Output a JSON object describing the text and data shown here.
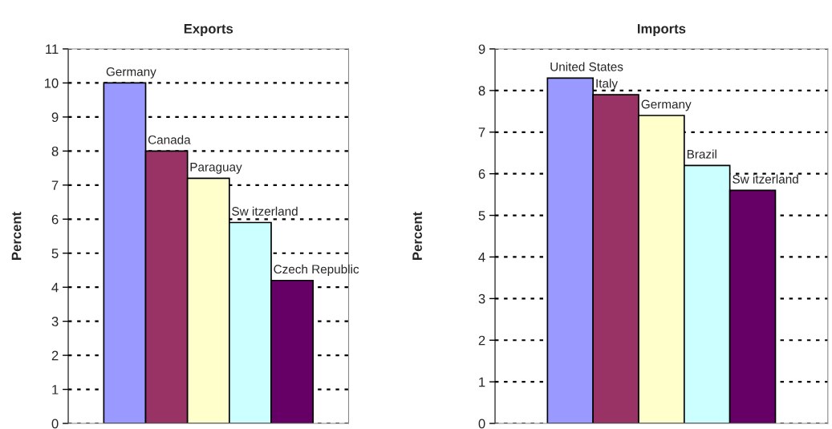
{
  "chart_data": [
    {
      "type": "bar",
      "title": "Exports",
      "ylabel": "Percent",
      "categories": [
        null
      ],
      "series": [
        {
          "name": "Germany",
          "color": "#9999ff",
          "values": [
            10.0
          ]
        },
        {
          "name": "Canada",
          "color": "#993366",
          "values": [
            8.0
          ]
        },
        {
          "name": "Paraguay",
          "color": "#ffffcc",
          "values": [
            7.2
          ]
        },
        {
          "name": "Sw itzerland",
          "color": "#ccffff",
          "values": [
            5.9
          ]
        },
        {
          "name": "Czech Republic",
          "color": "#660066",
          "values": [
            4.2
          ]
        }
      ],
      "ylim": [
        0,
        11
      ],
      "yticks": [
        0,
        1,
        2,
        3,
        4,
        5,
        6,
        7,
        8,
        9,
        10,
        11
      ],
      "grid": "y",
      "tick_labels": "y",
      "line_style": "dotted"
    },
    {
      "type": "bar",
      "title": "Imports",
      "ylabel": "Percent",
      "categories": [
        null
      ],
      "series": [
        {
          "name": "United States",
          "color": "#9999ff",
          "values": [
            8.3
          ]
        },
        {
          "name": "Italy",
          "color": "#993366",
          "values": [
            7.9
          ]
        },
        {
          "name": "Germany",
          "color": "#ffffcc",
          "values": [
            7.4
          ]
        },
        {
          "name": "Brazil",
          "color": "#ccffff",
          "values": [
            6.2
          ]
        },
        {
          "name": "Sw itzerland",
          "color": "#660066",
          "values": [
            5.6
          ]
        }
      ],
      "ylim": [
        0,
        9
      ],
      "yticks": [
        0,
        1,
        2,
        3,
        4,
        5,
        6,
        7,
        8,
        9
      ],
      "grid": "y",
      "tick_labels": "y",
      "line_style": "dotted"
    }
  ]
}
